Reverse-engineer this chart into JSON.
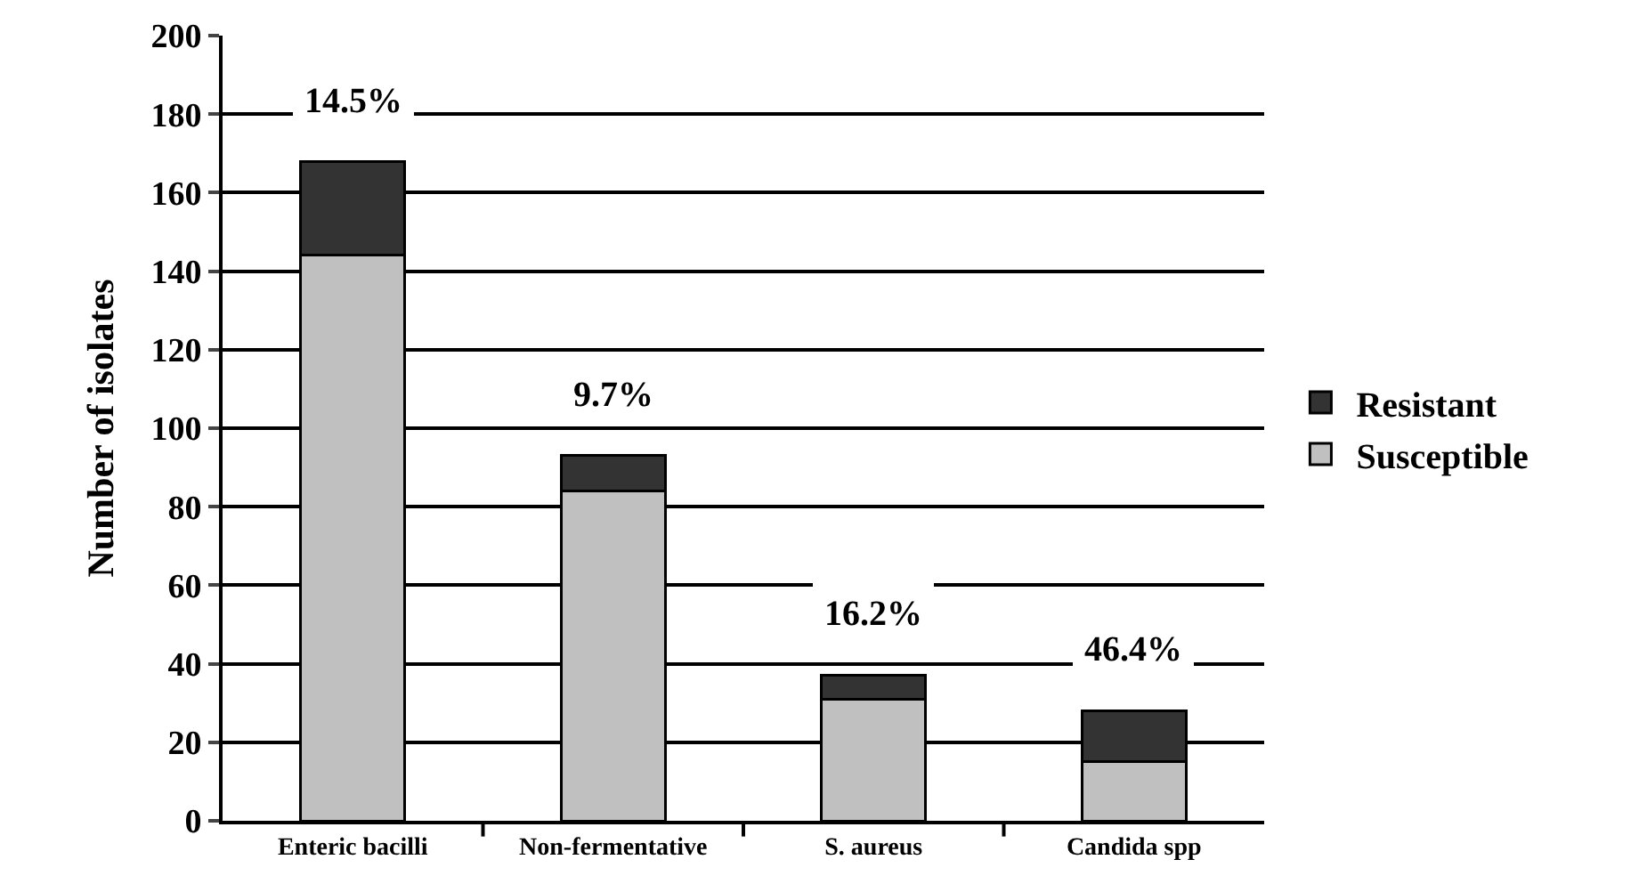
{
  "chart_data": {
    "type": "bar",
    "stacked": true,
    "ylabel": "Number of isolates",
    "categories": [
      "Enteric bacilli",
      "Non-fermentative",
      "S. aureus",
      "Candida spp"
    ],
    "series": [
      {
        "name": "Susceptible",
        "color": "#c0c0c0",
        "values": [
          144,
          84,
          31,
          15
        ]
      },
      {
        "name": "Resistant",
        "color": "#333333",
        "values": [
          24,
          9,
          6,
          13
        ]
      }
    ],
    "ylim": [
      0,
      200
    ],
    "yticks": [
      0,
      20,
      40,
      60,
      80,
      100,
      120,
      140,
      160,
      180,
      200
    ],
    "grid": "y",
    "legend": "right",
    "annotations": [
      "14.5%",
      "9.7%",
      "16.2%",
      "46.4%"
    ]
  }
}
